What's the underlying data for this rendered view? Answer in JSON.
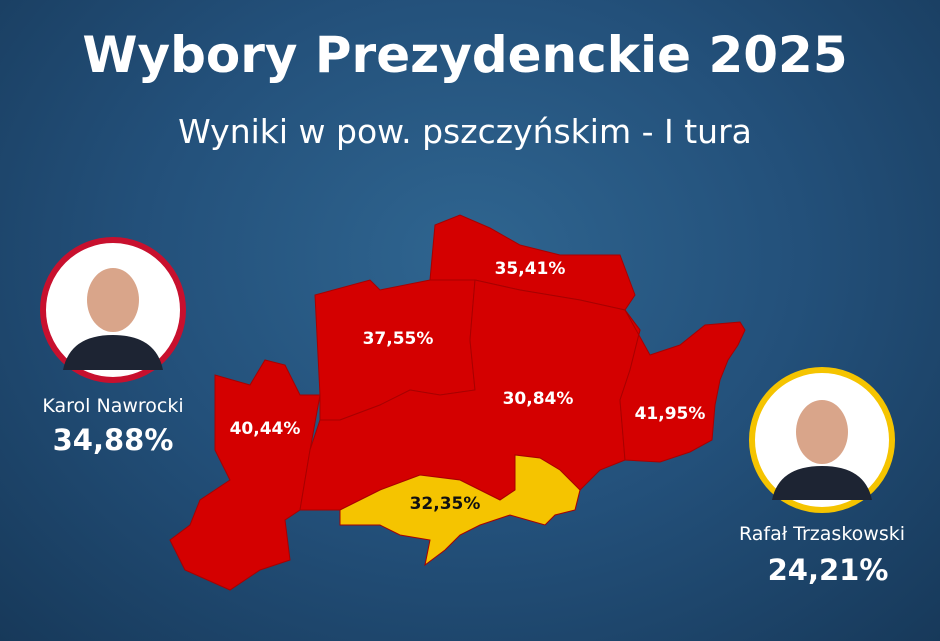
{
  "header": {
    "title": "Wybory Prezydenckie 2025",
    "subtitle": "Wyniki w pow. pszczyńskim - I tura"
  },
  "candidates": [
    {
      "name": "Karol Nawrocki",
      "result": "34,88%",
      "color": "#c8102e"
    },
    {
      "name": "Rafał Trzaskowski",
      "result": "24,21%",
      "color": "#f5c400"
    }
  ],
  "regions": [
    {
      "label": "40,44%",
      "color": "#d40000"
    },
    {
      "label": "37,55%",
      "color": "#d40000"
    },
    {
      "label": "35,41%",
      "color": "#d40000"
    },
    {
      "label": "30,84%",
      "color": "#d40000"
    },
    {
      "label": "41,95%",
      "color": "#d40000"
    },
    {
      "label": "32,35%",
      "color": "#f5c400"
    }
  ]
}
